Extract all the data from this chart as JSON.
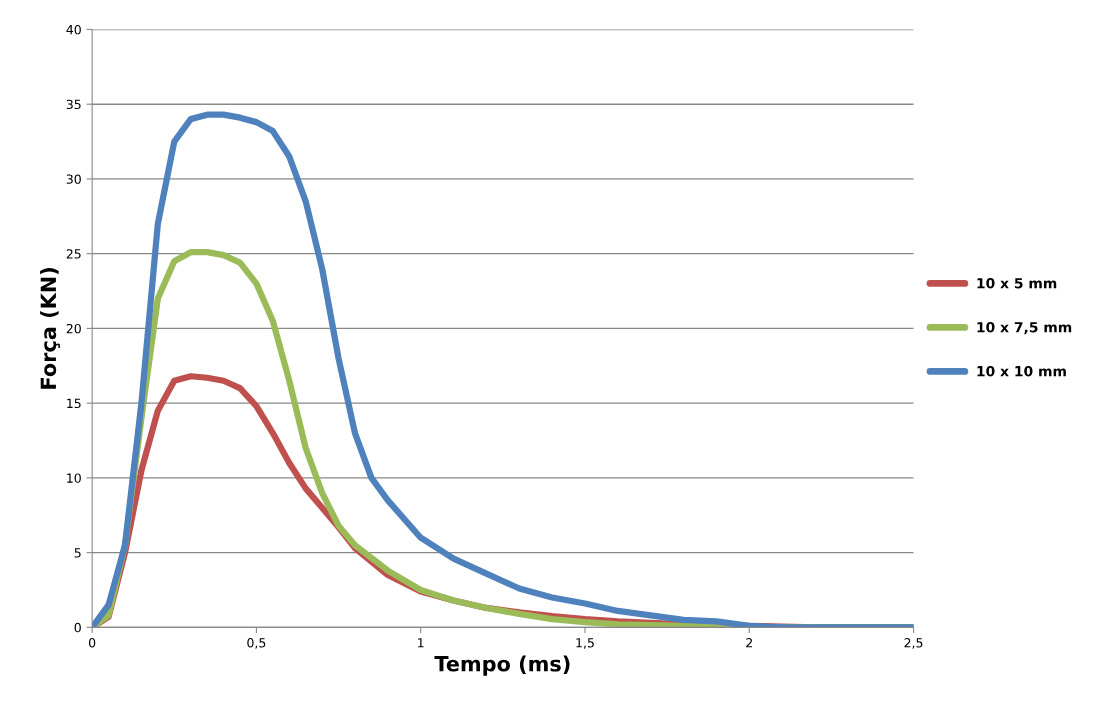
{
  "chart_data": {
    "type": "line",
    "xlabel": "Tempo (ms)",
    "ylabel": "Força (KN)",
    "xlim": [
      0,
      2.5
    ],
    "xticks": [
      0,
      {
        "value": 0.5,
        "label": "0,5"
      },
      1,
      {
        "value": 1.5,
        "label": "1,5"
      },
      2,
      {
        "value": 2.5,
        "label": "2,5"
      }
    ],
    "ylim": [
      0,
      40
    ],
    "yticks": [
      0,
      5,
      10,
      15,
      20,
      25,
      30,
      35,
      40
    ],
    "grid": "y",
    "legend": "right",
    "marker": "none",
    "line_style": "solid",
    "series": [
      {
        "name": "10 x 5 mm",
        "color": "#c0504d",
        "x": [
          0,
          0.05,
          0.1,
          0.15,
          0.2,
          0.25,
          0.3,
          0.35,
          0.4,
          0.45,
          0.5,
          0.55,
          0.6,
          0.65,
          0.7,
          0.75,
          0.8,
          0.9,
          1.0,
          1.1,
          1.2,
          1.3,
          1.4,
          1.5,
          1.6,
          1.8,
          2.0,
          2.2,
          2.5
        ],
        "values": [
          0,
          0.7,
          5,
          10.5,
          14.5,
          16.5,
          16.8,
          16.7,
          16.5,
          16,
          14.8,
          13,
          11,
          9.3,
          8,
          6.7,
          5.3,
          3.5,
          2.4,
          1.8,
          1.3,
          1.0,
          0.75,
          0.55,
          0.4,
          0.2,
          0.1,
          0,
          0
        ]
      },
      {
        "name": "10 x 7,5 mm",
        "color": "#9bbb59",
        "x": [
          0,
          0.05,
          0.1,
          0.15,
          0.2,
          0.25,
          0.3,
          0.35,
          0.4,
          0.45,
          0.5,
          0.55,
          0.6,
          0.65,
          0.7,
          0.75,
          0.8,
          0.9,
          1.0,
          1.1,
          1.2,
          1.3,
          1.4,
          1.5,
          1.6,
          1.8,
          2.0,
          2.5
        ],
        "values": [
          0,
          0.8,
          5.5,
          14,
          22,
          24.5,
          25.1,
          25.1,
          24.9,
          24.4,
          23,
          20.5,
          16.5,
          12,
          9,
          6.8,
          5.5,
          3.8,
          2.5,
          1.8,
          1.3,
          0.9,
          0.55,
          0.35,
          0.2,
          0.1,
          0,
          0
        ]
      },
      {
        "name": "10 x 10 mm",
        "color": "#4f81bd",
        "x": [
          0,
          0.05,
          0.1,
          0.15,
          0.2,
          0.25,
          0.3,
          0.35,
          0.4,
          0.45,
          0.5,
          0.55,
          0.6,
          0.65,
          0.7,
          0.75,
          0.8,
          0.85,
          0.9,
          1.0,
          1.1,
          1.2,
          1.3,
          1.4,
          1.5,
          1.6,
          1.7,
          1.8,
          1.9,
          2.0,
          2.1,
          2.5
        ],
        "values": [
          0,
          1.5,
          5.5,
          15,
          27,
          32.5,
          34,
          34.3,
          34.3,
          34.1,
          33.8,
          33.2,
          31.5,
          28.5,
          24,
          18,
          13,
          10,
          8.5,
          6,
          4.6,
          3.6,
          2.6,
          2.0,
          1.6,
          1.1,
          0.8,
          0.5,
          0.4,
          0.1,
          0,
          0
        ]
      }
    ]
  }
}
